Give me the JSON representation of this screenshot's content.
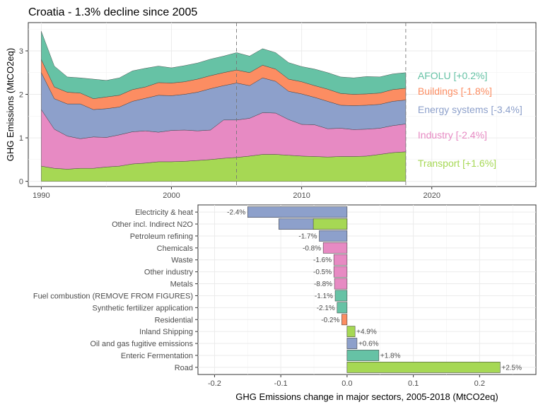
{
  "title": "Croatia - 1.3% decline since 2005",
  "colors": {
    "AFOLU": "#66c2a5",
    "Buildings": "#fc8d62",
    "Energy systems": "#8da0cb",
    "Industry": "#e78ac3",
    "Transport": "#a6d854"
  },
  "chart_data": [
    {
      "type": "area",
      "stacked": true,
      "title": "Croatia - 1.3% decline since 2005",
      "xlabel": "",
      "ylabel": "GHG Emissions (MtCO2eq)",
      "xlim": [
        1989,
        2028
      ],
      "ylim": [
        -0.12,
        3.65
      ],
      "xticks": [
        1990,
        2000,
        2010,
        2020
      ],
      "yticks": [
        0,
        1,
        2,
        3
      ],
      "reference_lines_x": [
        2005,
        2018
      ],
      "grid": true,
      "x": [
        1990,
        1991,
        1992,
        1993,
        1994,
        1995,
        1996,
        1997,
        1998,
        1999,
        2000,
        2001,
        2002,
        2003,
        2004,
        2005,
        2006,
        2007,
        2008,
        2009,
        2010,
        2011,
        2012,
        2013,
        2014,
        2015,
        2016,
        2017,
        2018
      ],
      "series": [
        {
          "name": "Transport",
          "label": "Transport [+1.6%]",
          "values": [
            0.35,
            0.3,
            0.28,
            0.3,
            0.3,
            0.33,
            0.35,
            0.4,
            0.42,
            0.45,
            0.45,
            0.46,
            0.48,
            0.5,
            0.53,
            0.55,
            0.58,
            0.62,
            0.62,
            0.6,
            0.58,
            0.57,
            0.56,
            0.57,
            0.57,
            0.58,
            0.62,
            0.66,
            0.68
          ]
        },
        {
          "name": "Industry",
          "label": "Industry [-2.4%]",
          "values": [
            1.3,
            0.9,
            0.76,
            0.68,
            0.72,
            0.68,
            0.72,
            0.74,
            0.74,
            0.68,
            0.72,
            0.72,
            0.68,
            0.68,
            0.88,
            0.86,
            0.87,
            0.96,
            0.95,
            0.82,
            0.73,
            0.73,
            0.65,
            0.65,
            0.62,
            0.62,
            0.6,
            0.62,
            0.64
          ]
        },
        {
          "name": "Energy systems",
          "label": "Energy systems [-3.4%]",
          "values": [
            0.85,
            0.7,
            0.74,
            0.8,
            0.63,
            0.66,
            0.64,
            0.7,
            0.75,
            0.85,
            0.8,
            0.82,
            0.89,
            0.95,
            0.79,
            0.85,
            0.75,
            0.8,
            0.73,
            0.65,
            0.7,
            0.63,
            0.63,
            0.53,
            0.55,
            0.55,
            0.55,
            0.56,
            0.55
          ]
        },
        {
          "name": "Buildings",
          "label": "Buildings [-1.8%]",
          "values": [
            0.3,
            0.27,
            0.27,
            0.25,
            0.25,
            0.27,
            0.27,
            0.27,
            0.26,
            0.29,
            0.29,
            0.29,
            0.3,
            0.3,
            0.3,
            0.3,
            0.3,
            0.29,
            0.28,
            0.28,
            0.28,
            0.27,
            0.28,
            0.27,
            0.26,
            0.26,
            0.26,
            0.27,
            0.27
          ]
        },
        {
          "name": "AFOLU",
          "label": "AFOLU [+0.2%]",
          "values": [
            0.65,
            0.48,
            0.35,
            0.35,
            0.45,
            0.38,
            0.4,
            0.43,
            0.43,
            0.38,
            0.35,
            0.37,
            0.37,
            0.38,
            0.38,
            0.4,
            0.38,
            0.38,
            0.38,
            0.38,
            0.35,
            0.38,
            0.38,
            0.38,
            0.38,
            0.4,
            0.37,
            0.36,
            0.36
          ]
        }
      ]
    },
    {
      "type": "bar",
      "orientation": "horizontal",
      "xlabel": "GHG Emissions change in major sectors, 2005-2018 (MtCO2eq)",
      "ylabel": "",
      "xlim": [
        -0.225,
        0.285
      ],
      "xticks": [
        -0.2,
        -0.1,
        0.0,
        0.1,
        0.2
      ],
      "xtick_labels": [
        "-0.2",
        "-0.1",
        "0.0",
        "0.1",
        "0.2"
      ],
      "grid": true,
      "categories": [
        "Electricity & heat",
        "Other incl. Indirect N2O",
        "Petroleum refining",
        "Chemicals",
        "Waste",
        "Other industry",
        "Metals",
        "Fuel combustion (REMOVE FROM FIGURES)",
        "Synthetic fertilizer application",
        "Residential",
        "Inland Shipping",
        "Oil and gas fugitive emissions",
        "Enteric Fermentation",
        "Road"
      ],
      "bars": [
        {
          "category": "Electricity & heat",
          "sector": "Energy systems",
          "value": -0.15,
          "label": "-2.4%"
        },
        {
          "category": "Other incl. Indirect N2O",
          "sector": "Energy systems",
          "value": -0.103,
          "label": ""
        },
        {
          "category": "Other incl. Indirect N2O",
          "sector": "Transport",
          "value": -0.051,
          "label": ""
        },
        {
          "category": "Petroleum refining",
          "sector": "Energy systems",
          "value": -0.042,
          "label": "-1.7%"
        },
        {
          "category": "Chemicals",
          "sector": "Industry",
          "value": -0.036,
          "label": "-0.8%"
        },
        {
          "category": "Waste",
          "sector": "Industry",
          "value": -0.02,
          "label": "-1.6%"
        },
        {
          "category": "Other industry",
          "sector": "Industry",
          "value": -0.02,
          "label": "-0.5%"
        },
        {
          "category": "Metals",
          "sector": "Industry",
          "value": -0.019,
          "label": "-8.8%"
        },
        {
          "category": "Fuel combustion (REMOVE FROM FIGURES)",
          "sector": "AFOLU",
          "value": -0.018,
          "label": "-1.1%"
        },
        {
          "category": "Synthetic fertilizer application",
          "sector": "AFOLU",
          "value": -0.015,
          "label": "-2.1%"
        },
        {
          "category": "Residential",
          "sector": "Buildings",
          "value": -0.008,
          "label": "-0.2%"
        },
        {
          "category": "Inland Shipping",
          "sector": "Transport",
          "value": 0.012,
          "label": "+4.9%"
        },
        {
          "category": "Oil and gas fugitive emissions",
          "sector": "Energy systems",
          "value": 0.015,
          "label": "+0.6%"
        },
        {
          "category": "Enteric Fermentation",
          "sector": "AFOLU",
          "value": 0.048,
          "label": "+1.8%"
        },
        {
          "category": "Road",
          "sector": "Transport",
          "value": 0.231,
          "label": "+2.5%"
        }
      ]
    }
  ]
}
